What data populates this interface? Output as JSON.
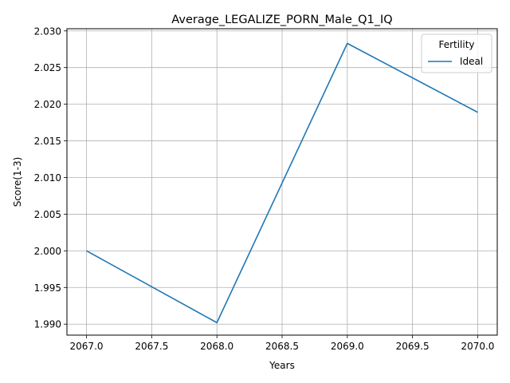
{
  "chart_data": {
    "type": "line",
    "title": "Average_LEGALIZE_PORN_Male_Q1_IQ",
    "xlabel": "Years",
    "ylabel": "Score(1-3)",
    "xlim": [
      2066.85,
      2070.15
    ],
    "ylim": [
      1.9885,
      2.0303
    ],
    "x_ticks": [
      2067.0,
      2067.5,
      2068.0,
      2068.5,
      2069.0,
      2069.5,
      2070.0
    ],
    "x_tick_labels": [
      "2067.0",
      "2067.5",
      "2068.0",
      "2068.5",
      "2069.0",
      "2069.5",
      "2070.0"
    ],
    "y_ticks": [
      1.99,
      1.995,
      2.0,
      2.005,
      2.01,
      2.015,
      2.02,
      2.025,
      2.03
    ],
    "y_tick_labels": [
      "1.990",
      "1.995",
      "2.000",
      "2.005",
      "2.010",
      "2.015",
      "2.020",
      "2.025",
      "2.030"
    ],
    "grid": true,
    "legend": {
      "title": "Fertility",
      "placement": "top-right"
    },
    "series": [
      {
        "name": "Ideal",
        "color": "#1f77b4",
        "x": [
          2067,
          2068,
          2069,
          2070
        ],
        "y": [
          2.0,
          1.9902,
          2.0283,
          2.0189
        ]
      }
    ]
  }
}
